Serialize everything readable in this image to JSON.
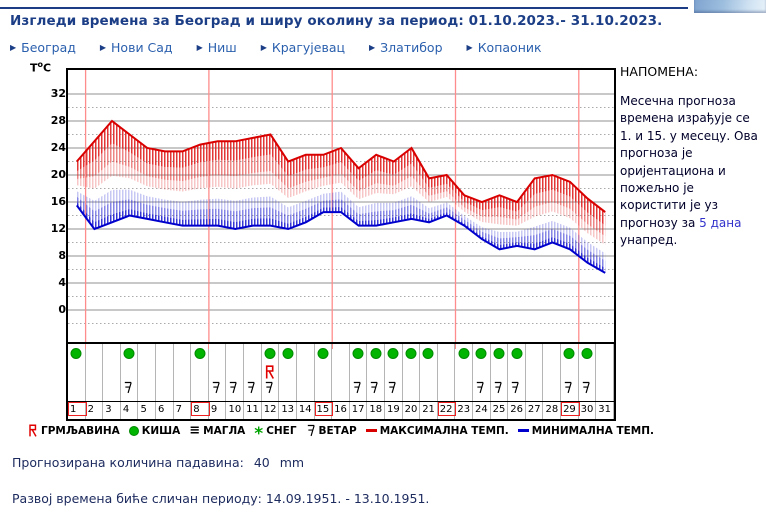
{
  "header": {
    "title": "Изгледи времена за Београд и ширу околину за период: 01.10.2023.- 31.10.2023.",
    "nav_links": [
      "Београд",
      "Нови Сад",
      "Ниш",
      "Крагујевац",
      "Златибор",
      "Копаоник"
    ]
  },
  "note": {
    "heading": "НАПОМЕНА:",
    "body_before": "Месечна прогноза времена израђује се 1. и 15. у месецу. Ова прогноза је оријентациона и пожељно је користити је уз прогнозу за ",
    "body_highlight": "5 дана",
    "body_after": " унапред."
  },
  "footer": {
    "precipitation_label": "Прогнозирана количина падавина:",
    "precipitation_value": "40",
    "precipitation_unit": "mm",
    "similar_period": "Развој времена биће сличан периоду: 14.09.1951. - 13.10.1951."
  },
  "legend": [
    {
      "symbol": "thunder",
      "label": "ГРМЉАВИНА"
    },
    {
      "symbol": "rain",
      "label": "КИША"
    },
    {
      "symbol": "fog",
      "label": "МАГЛА"
    },
    {
      "symbol": "snow",
      "label": "СНЕГ"
    },
    {
      "symbol": "wind",
      "label": "ВЕТАР"
    },
    {
      "symbol": "max-line",
      "label": "МАКСИМАЛНА ТЕМП."
    },
    {
      "symbol": "min-line",
      "label": "МИНИМАЛНА ТЕМП."
    }
  ],
  "chart_data": {
    "type": "line",
    "axis_title_t": "T",
    "axis_title_deg": "o",
    "axis_title_c": "C",
    "x_days": [
      1,
      2,
      3,
      4,
      5,
      6,
      7,
      8,
      9,
      10,
      11,
      12,
      13,
      14,
      15,
      16,
      17,
      18,
      19,
      20,
      21,
      22,
      23,
      24,
      25,
      26,
      27,
      28,
      29,
      30,
      31
    ],
    "series": [
      {
        "name": "МАКСИМАЛНА ТЕМП.",
        "color": "#d90000",
        "values": [
          22,
          25,
          28,
          26,
          24,
          23.5,
          23.5,
          24.5,
          25,
          25,
          25.5,
          26,
          22,
          23,
          23,
          24,
          21,
          23,
          22,
          24,
          19.5,
          20,
          17,
          16,
          17,
          16,
          19.5,
          20,
          19,
          16.5,
          14.5
        ]
      },
      {
        "name": "МИНИМАЛНА ТЕМП.",
        "color": "#0000cd",
        "values": [
          15.5,
          12,
          13,
          14,
          13.5,
          13,
          12.5,
          12.5,
          12.5,
          12,
          12.5,
          12.5,
          12,
          13,
          14.5,
          14.5,
          12.5,
          12.5,
          13,
          13.5,
          13,
          14,
          12.5,
          10.5,
          9,
          9.5,
          9,
          10,
          9,
          7,
          5.5
        ]
      }
    ],
    "ylim": [
      -4.7,
      35.5
    ],
    "yticks": [
      0,
      4,
      8,
      12,
      16,
      20,
      24,
      28,
      32
    ],
    "grid": "horizontal solid every 4C, dotted every 2C, vertical pink lines after sundays",
    "legend_position": "bottom",
    "sunday_marked_days": [
      1,
      8,
      15,
      22,
      29
    ],
    "day_icons": {
      "rain": [
        1,
        4,
        8,
        12,
        13,
        15,
        17,
        18,
        19,
        20,
        21,
        23,
        24,
        25,
        26,
        29,
        30
      ],
      "wind": [
        4,
        9,
        10,
        11,
        12,
        17,
        18,
        19,
        24,
        25,
        26,
        29,
        30
      ],
      "thunder": [
        12
      ],
      "fog": [],
      "snow": []
    }
  },
  "colors": {
    "title": "#1c3e86",
    "nav_link": "#2a5fad",
    "max_temp": "#d90000",
    "min_temp": "#0000cd",
    "rain_green": "#00b400",
    "pink_grid": "#ff8c8c",
    "sunday_box": "#ef2020"
  }
}
